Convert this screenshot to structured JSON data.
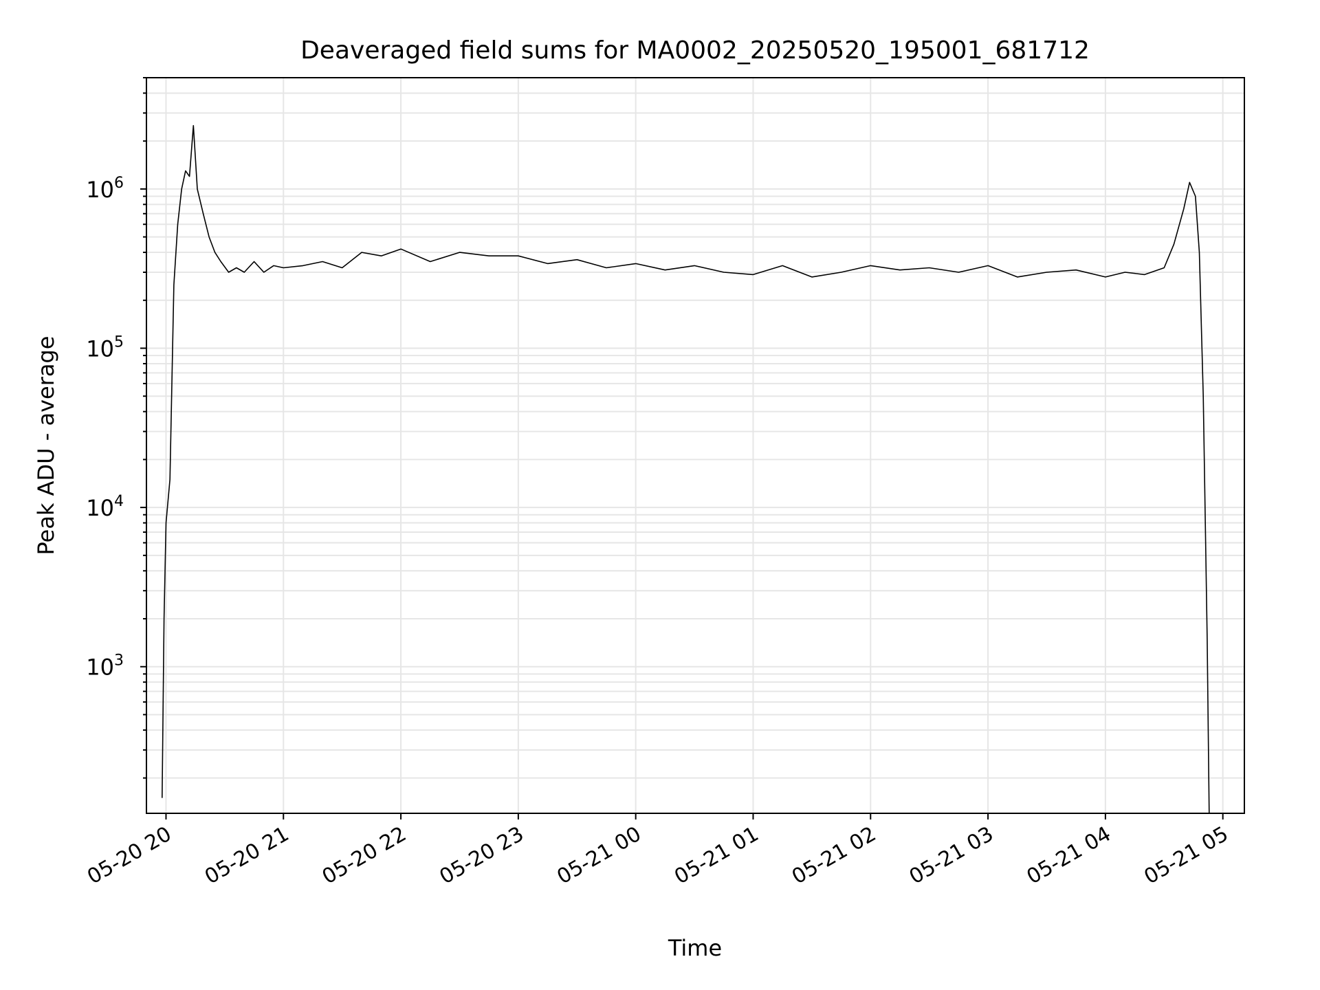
{
  "chart_data": {
    "type": "line",
    "title": "Deaveraged field sums for MA0002_20250520_195001_681712",
    "xlabel": "Time",
    "ylabel": "Peak ADU - average",
    "x_axis": {
      "kind": "datetime",
      "range": [
        "2025-05-20 19:50",
        "2025-05-21 05:11"
      ],
      "ticks": [
        {
          "at": "2025-05-20 20:00",
          "label": "05-20 20"
        },
        {
          "at": "2025-05-20 21:00",
          "label": "05-20 21"
        },
        {
          "at": "2025-05-20 22:00",
          "label": "05-20 22"
        },
        {
          "at": "2025-05-20 23:00",
          "label": "05-20 23"
        },
        {
          "at": "2025-05-21 00:00",
          "label": "05-21 00"
        },
        {
          "at": "2025-05-21 01:00",
          "label": "05-21 01"
        },
        {
          "at": "2025-05-21 02:00",
          "label": "05-21 02"
        },
        {
          "at": "2025-05-21 03:00",
          "label": "05-21 03"
        },
        {
          "at": "2025-05-21 04:00",
          "label": "05-21 04"
        },
        {
          "at": "2025-05-21 05:00",
          "label": "05-21 05"
        }
      ]
    },
    "y_axis": {
      "scale": "log",
      "range": [
        120,
        5000000
      ],
      "ticks": [
        {
          "value": 1000,
          "base": "10",
          "exp": "3"
        },
        {
          "value": 10000,
          "base": "10",
          "exp": "4"
        },
        {
          "value": 100000,
          "base": "10",
          "exp": "5"
        },
        {
          "value": 1000000,
          "base": "10",
          "exp": "6"
        }
      ]
    },
    "grid": true,
    "series_color": "#000000",
    "grid_color": "#e6e6e6",
    "series": [
      {
        "x": [
          "2025-05-20 19:58",
          "2025-05-20 19:59",
          "2025-05-20 20:00",
          "2025-05-20 20:02",
          "2025-05-20 20:03",
          "2025-05-20 20:04",
          "2025-05-20 20:06",
          "2025-05-20 20:08",
          "2025-05-20 20:10",
          "2025-05-20 20:12",
          "2025-05-20 20:14",
          "2025-05-20 20:16",
          "2025-05-20 20:19",
          "2025-05-20 20:22",
          "2025-05-20 20:25",
          "2025-05-20 20:28",
          "2025-05-20 20:32",
          "2025-05-20 20:36",
          "2025-05-20 20:40",
          "2025-05-20 20:45",
          "2025-05-20 20:50",
          "2025-05-20 20:55",
          "2025-05-20 21:00",
          "2025-05-20 21:10",
          "2025-05-20 21:20",
          "2025-05-20 21:30",
          "2025-05-20 21:40",
          "2025-05-20 21:50",
          "2025-05-20 22:00",
          "2025-05-20 22:15",
          "2025-05-20 22:30",
          "2025-05-20 22:45",
          "2025-05-20 23:00",
          "2025-05-20 23:15",
          "2025-05-20 23:30",
          "2025-05-20 23:45",
          "2025-05-21 00:00",
          "2025-05-21 00:15",
          "2025-05-21 00:30",
          "2025-05-21 00:45",
          "2025-05-21 01:00",
          "2025-05-21 01:15",
          "2025-05-21 01:30",
          "2025-05-21 01:45",
          "2025-05-21 02:00",
          "2025-05-21 02:15",
          "2025-05-21 02:30",
          "2025-05-21 02:45",
          "2025-05-21 03:00",
          "2025-05-21 03:15",
          "2025-05-21 03:30",
          "2025-05-21 03:45",
          "2025-05-21 04:00",
          "2025-05-21 04:10",
          "2025-05-21 04:20",
          "2025-05-21 04:30",
          "2025-05-21 04:35",
          "2025-05-21 04:40",
          "2025-05-21 04:43",
          "2025-05-21 04:46",
          "2025-05-21 04:48",
          "2025-05-21 04:50",
          "2025-05-21 04:52",
          "2025-05-21 04:53"
        ],
        "y": [
          150,
          2000,
          8000,
          15000,
          60000,
          250000,
          600000,
          1000000,
          1300000,
          1200000,
          2500000,
          1000000,
          700000,
          500000,
          400000,
          350000,
          300000,
          320000,
          300000,
          350000,
          300000,
          330000,
          320000,
          330000,
          350000,
          320000,
          400000,
          380000,
          420000,
          350000,
          400000,
          380000,
          380000,
          340000,
          360000,
          320000,
          340000,
          310000,
          330000,
          300000,
          290000,
          330000,
          280000,
          300000,
          330000,
          310000,
          320000,
          300000,
          330000,
          280000,
          300000,
          310000,
          280000,
          300000,
          290000,
          320000,
          450000,
          750000,
          1100000,
          900000,
          400000,
          50000,
          1500,
          120
        ]
      }
    ]
  }
}
